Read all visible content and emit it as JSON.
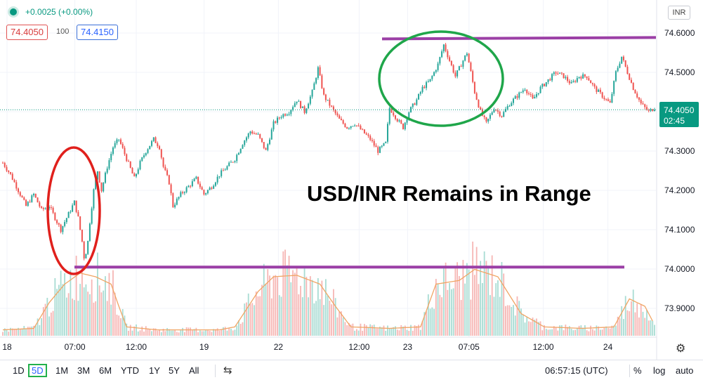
{
  "header": {
    "change": "+0.0025 (+0.00%)",
    "bid": "74.4050",
    "spread": "100",
    "ask": "74.4150",
    "currency": "INR"
  },
  "price_label": {
    "value": "74.4050",
    "countdown": "02:45"
  },
  "overlay_title": "USD/INR Remains in Range",
  "chart_data": {
    "type": "candlestick",
    "title": "",
    "x_ticks": [
      "18",
      "07:00",
      "12:00",
      "19",
      "22",
      "12:00",
      "23",
      "07:05",
      "12:00",
      "24"
    ],
    "y_ticks": [
      74.6,
      74.5,
      74.4,
      74.3,
      74.2,
      74.1,
      74.0,
      73.9
    ],
    "y_tick_labels": [
      "74.6000",
      "74.5000",
      "74.4000",
      "74.3000",
      "74.2000",
      "74.1000",
      "74.0000",
      "73.9000"
    ],
    "ylim": [
      73.84,
      74.67
    ],
    "last_price": 74.405,
    "resistance": 74.585,
    "support": 74.005,
    "path": [
      [
        0,
        74.27
      ],
      [
        2,
        74.24
      ],
      [
        4,
        74.2
      ],
      [
        6,
        74.16
      ],
      [
        8,
        74.19
      ],
      [
        10,
        74.15
      ],
      [
        12,
        74.16
      ],
      [
        14,
        74.12
      ],
      [
        15,
        74.1
      ],
      [
        17,
        74.14
      ],
      [
        18.5,
        74.17
      ],
      [
        19.5,
        74.13
      ],
      [
        20.5,
        74.07
      ],
      [
        21,
        74.03
      ],
      [
        21.8,
        74.05
      ],
      [
        22.5,
        74.12
      ],
      [
        23.5,
        74.2
      ],
      [
        24.5,
        74.25
      ],
      [
        25.5,
        74.2
      ],
      [
        27,
        74.26
      ],
      [
        28.5,
        74.31
      ],
      [
        30,
        74.33
      ],
      [
        32,
        74.28
      ],
      [
        34,
        74.23
      ],
      [
        35.5,
        74.27
      ],
      [
        37,
        74.3
      ],
      [
        39,
        74.33
      ],
      [
        40.5,
        74.31
      ],
      [
        41.5,
        74.26
      ],
      [
        43,
        74.22
      ],
      [
        44,
        74.16
      ],
      [
        46,
        74.19
      ],
      [
        48,
        74.21
      ],
      [
        50,
        74.23
      ],
      [
        52,
        74.19
      ],
      [
        54,
        74.21
      ],
      [
        56,
        74.24
      ],
      [
        58,
        74.26
      ],
      [
        60,
        74.28
      ],
      [
        62,
        74.32
      ],
      [
        64,
        74.35
      ],
      [
        66,
        74.34
      ],
      [
        68,
        74.3
      ],
      [
        70,
        74.37
      ],
      [
        72,
        74.39
      ],
      [
        74,
        74.4
      ],
      [
        76,
        74.43
      ],
      [
        78,
        74.4
      ],
      [
        80,
        74.45
      ],
      [
        81.5,
        74.51
      ],
      [
        83,
        74.44
      ],
      [
        85,
        74.41
      ],
      [
        87,
        74.38
      ],
      [
        89,
        74.36
      ],
      [
        91,
        74.37
      ],
      [
        93,
        74.35
      ],
      [
        95,
        74.33
      ],
      [
        97,
        74.3
      ],
      [
        99,
        74.32
      ],
      [
        100,
        74.41
      ],
      [
        102,
        74.38
      ],
      [
        103.5,
        74.36
      ],
      [
        105,
        74.4
      ],
      [
        107,
        74.43
      ],
      [
        108.5,
        74.46
      ],
      [
        110.5,
        74.48
      ],
      [
        112.5,
        74.52
      ],
      [
        114,
        74.57
      ],
      [
        115.5,
        74.53
      ],
      [
        117,
        74.49
      ],
      [
        118.5,
        74.52
      ],
      [
        120,
        74.55
      ],
      [
        121,
        74.5
      ],
      [
        122,
        74.45
      ],
      [
        123.5,
        74.4
      ],
      [
        125,
        74.37
      ],
      [
        127,
        74.41
      ],
      [
        129,
        74.39
      ],
      [
        131,
        74.42
      ],
      [
        133,
        74.44
      ],
      [
        135,
        74.46
      ],
      [
        137,
        74.43
      ],
      [
        139,
        74.46
      ],
      [
        141,
        74.48
      ],
      [
        143,
        74.5
      ],
      [
        145,
        74.49
      ],
      [
        147,
        74.47
      ],
      [
        149,
        74.49
      ],
      [
        151,
        74.49
      ],
      [
        153,
        74.46
      ],
      [
        155,
        74.44
      ],
      [
        157,
        74.42
      ],
      [
        158.5,
        74.5
      ],
      [
        160,
        74.54
      ],
      [
        161.5,
        74.5
      ],
      [
        163,
        74.46
      ],
      [
        165,
        74.42
      ],
      [
        167,
        74.4
      ],
      [
        168.5,
        74.41
      ]
    ],
    "volume_profile": [
      [
        0,
        8
      ],
      [
        8,
        10
      ],
      [
        12,
        45
      ],
      [
        16,
        70
      ],
      [
        20,
        85
      ],
      [
        24,
        80
      ],
      [
        28,
        70
      ],
      [
        30,
        40
      ],
      [
        32,
        12
      ],
      [
        40,
        8
      ],
      [
        56,
        8
      ],
      [
        60,
        12
      ],
      [
        66,
        60
      ],
      [
        70,
        80
      ],
      [
        76,
        82
      ],
      [
        82,
        70
      ],
      [
        86,
        40
      ],
      [
        90,
        12
      ],
      [
        100,
        10
      ],
      [
        108,
        12
      ],
      [
        112,
        70
      ],
      [
        118,
        75
      ],
      [
        122,
        90
      ],
      [
        128,
        80
      ],
      [
        134,
        30
      ],
      [
        140,
        12
      ],
      [
        150,
        10
      ],
      [
        158,
        12
      ],
      [
        162,
        50
      ],
      [
        166,
        40
      ],
      [
        168.5,
        15
      ]
    ]
  },
  "toolbar": {
    "timeframes": [
      "1D",
      "5D",
      "1M",
      "3M",
      "6M",
      "YTD",
      "1Y",
      "5Y",
      "All"
    ],
    "selected": "5D",
    "clock": "06:57:15 (UTC)",
    "percent": "%",
    "log": "log",
    "auto": "auto"
  },
  "annotation_colors": {
    "support_resistance": "#9b3fa6",
    "low_circle": "#e0201c",
    "high_circle": "#1fa64a"
  }
}
